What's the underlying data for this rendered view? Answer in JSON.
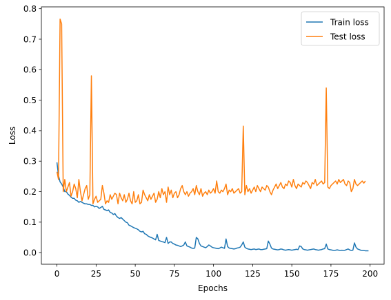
{
  "chart_data": {
    "type": "line",
    "title": "",
    "xlabel": "Epochs",
    "ylabel": "Loss",
    "xlim": [
      -9.95,
      208.95
    ],
    "ylim": [
      -0.038,
      0.806
    ],
    "xticks": [
      0,
      25,
      50,
      75,
      100,
      125,
      150,
      175,
      200
    ],
    "xtick_labels": [
      "0",
      "25",
      "50",
      "75",
      "100",
      "125",
      "150",
      "175",
      "200"
    ],
    "yticks": [
      0.0,
      0.1,
      0.2,
      0.3,
      0.4,
      0.5,
      0.6,
      0.7,
      0.8
    ],
    "ytick_labels": [
      "0.0",
      "0.1",
      "0.2",
      "0.3",
      "0.4",
      "0.5",
      "0.6",
      "0.7",
      "0.8"
    ],
    "grid": false,
    "legend_position": "top-right",
    "series": [
      {
        "name": "Train loss",
        "color": "#1f77b4",
        "values": [
          0.296,
          0.252,
          0.232,
          0.225,
          0.215,
          0.2,
          0.2,
          0.192,
          0.188,
          0.182,
          0.178,
          0.178,
          0.172,
          0.17,
          0.165,
          0.168,
          0.165,
          0.162,
          0.16,
          0.16,
          0.158,
          0.158,
          0.155,
          0.155,
          0.15,
          0.152,
          0.15,
          0.145,
          0.148,
          0.152,
          0.142,
          0.14,
          0.138,
          0.14,
          0.132,
          0.13,
          0.125,
          0.128,
          0.12,
          0.115,
          0.112,
          0.115,
          0.11,
          0.105,
          0.1,
          0.098,
          0.09,
          0.088,
          0.085,
          0.082,
          0.08,
          0.078,
          0.075,
          0.07,
          0.068,
          0.07,
          0.062,
          0.06,
          0.055,
          0.052,
          0.05,
          0.048,
          0.045,
          0.042,
          0.06,
          0.04,
          0.038,
          0.036,
          0.035,
          0.033,
          0.05,
          0.03,
          0.035,
          0.035,
          0.03,
          0.028,
          0.025,
          0.024,
          0.022,
          0.02,
          0.022,
          0.025,
          0.035,
          0.022,
          0.02,
          0.018,
          0.015,
          0.014,
          0.015,
          0.05,
          0.045,
          0.03,
          0.022,
          0.02,
          0.018,
          0.016,
          0.02,
          0.025,
          0.022,
          0.018,
          0.016,
          0.015,
          0.014,
          0.013,
          0.015,
          0.018,
          0.016,
          0.014,
          0.045,
          0.02,
          0.015,
          0.014,
          0.013,
          0.012,
          0.013,
          0.015,
          0.016,
          0.018,
          0.025,
          0.035,
          0.018,
          0.014,
          0.012,
          0.011,
          0.01,
          0.011,
          0.012,
          0.01,
          0.011,
          0.012,
          0.01,
          0.01,
          0.011,
          0.012,
          0.013,
          0.038,
          0.028,
          0.015,
          0.012,
          0.011,
          0.01,
          0.009,
          0.01,
          0.012,
          0.011,
          0.009,
          0.008,
          0.009,
          0.01,
          0.009,
          0.008,
          0.009,
          0.01,
          0.011,
          0.01,
          0.022,
          0.02,
          0.012,
          0.01,
          0.009,
          0.008,
          0.009,
          0.01,
          0.011,
          0.012,
          0.01,
          0.009,
          0.008,
          0.009,
          0.01,
          0.012,
          0.013,
          0.028,
          0.012,
          0.01,
          0.009,
          0.008,
          0.007,
          0.008,
          0.009,
          0.008,
          0.007,
          0.008,
          0.007,
          0.008,
          0.01,
          0.012,
          0.009,
          0.007,
          0.008,
          0.032,
          0.018,
          0.012,
          0.01,
          0.008,
          0.007,
          0.007,
          0.006,
          0.006,
          0.006
        ]
      },
      {
        "name": "Test loss",
        "color": "#ff7f0e",
        "values": [
          0.265,
          0.24,
          0.766,
          0.75,
          0.2,
          0.24,
          0.2,
          0.215,
          0.23,
          0.185,
          0.2,
          0.225,
          0.21,
          0.18,
          0.24,
          0.2,
          0.17,
          0.19,
          0.21,
          0.22,
          0.175,
          0.19,
          0.58,
          0.16,
          0.175,
          0.185,
          0.165,
          0.17,
          0.175,
          0.22,
          0.195,
          0.16,
          0.17,
          0.165,
          0.19,
          0.175,
          0.185,
          0.195,
          0.19,
          0.16,
          0.195,
          0.18,
          0.17,
          0.19,
          0.165,
          0.175,
          0.195,
          0.17,
          0.16,
          0.2,
          0.165,
          0.17,
          0.19,
          0.16,
          0.165,
          0.205,
          0.19,
          0.18,
          0.17,
          0.19,
          0.175,
          0.185,
          0.195,
          0.165,
          0.175,
          0.2,
          0.18,
          0.21,
          0.19,
          0.2,
          0.165,
          0.215,
          0.19,
          0.205,
          0.18,
          0.195,
          0.2,
          0.18,
          0.19,
          0.21,
          0.22,
          0.2,
          0.19,
          0.2,
          0.185,
          0.195,
          0.2,
          0.21,
          0.19,
          0.22,
          0.2,
          0.19,
          0.21,
          0.185,
          0.195,
          0.2,
          0.19,
          0.205,
          0.195,
          0.2,
          0.21,
          0.195,
          0.235,
          0.2,
          0.195,
          0.205,
          0.2,
          0.21,
          0.225,
          0.19,
          0.205,
          0.2,
          0.21,
          0.195,
          0.2,
          0.205,
          0.21,
          0.195,
          0.2,
          0.415,
          0.19,
          0.22,
          0.2,
          0.21,
          0.195,
          0.205,
          0.215,
          0.2,
          0.22,
          0.21,
          0.2,
          0.215,
          0.21,
          0.205,
          0.22,
          0.215,
          0.2,
          0.19,
          0.205,
          0.215,
          0.225,
          0.21,
          0.22,
          0.23,
          0.215,
          0.21,
          0.225,
          0.22,
          0.235,
          0.23,
          0.215,
          0.24,
          0.22,
          0.21,
          0.225,
          0.22,
          0.215,
          0.23,
          0.225,
          0.235,
          0.23,
          0.22,
          0.21,
          0.23,
          0.225,
          0.24,
          0.22,
          0.225,
          0.23,
          0.235,
          0.225,
          0.23,
          0.54,
          0.215,
          0.21,
          0.22,
          0.225,
          0.23,
          0.235,
          0.225,
          0.24,
          0.23,
          0.235,
          0.24,
          0.225,
          0.22,
          0.235,
          0.23,
          0.2,
          0.21,
          0.24,
          0.225,
          0.22,
          0.225,
          0.23,
          0.235,
          0.228,
          0.235
        ]
      }
    ]
  }
}
